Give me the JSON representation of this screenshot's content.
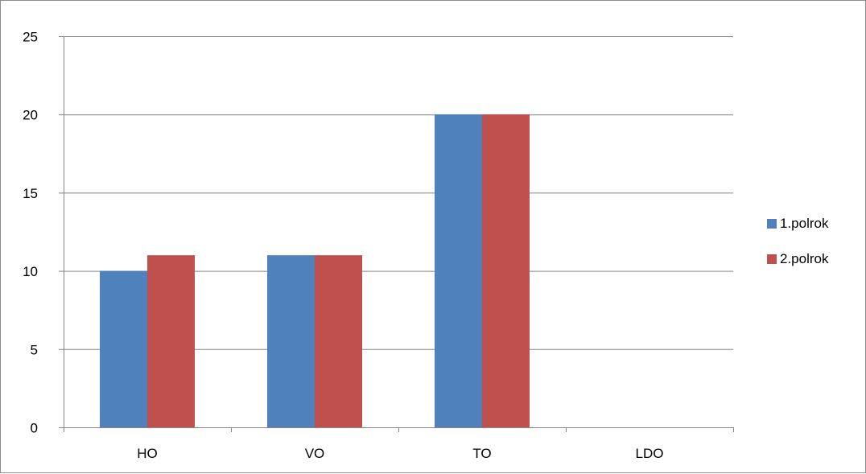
{
  "chart_data": {
    "type": "bar",
    "title": "",
    "xlabel": "",
    "ylabel": "",
    "categories": [
      "HO",
      "VO",
      "TO",
      "LDO"
    ],
    "series": [
      {
        "name": "1.polrok",
        "color": "#4f81bd",
        "values": [
          10,
          11,
          20,
          0
        ]
      },
      {
        "name": "2.polrok",
        "color": "#c0504d",
        "values": [
          11,
          11,
          20,
          0
        ]
      }
    ],
    "ylim": [
      0,
      25
    ],
    "yticks": [
      0,
      5,
      10,
      15,
      20,
      25
    ],
    "grid": true,
    "legend_position": "right"
  }
}
